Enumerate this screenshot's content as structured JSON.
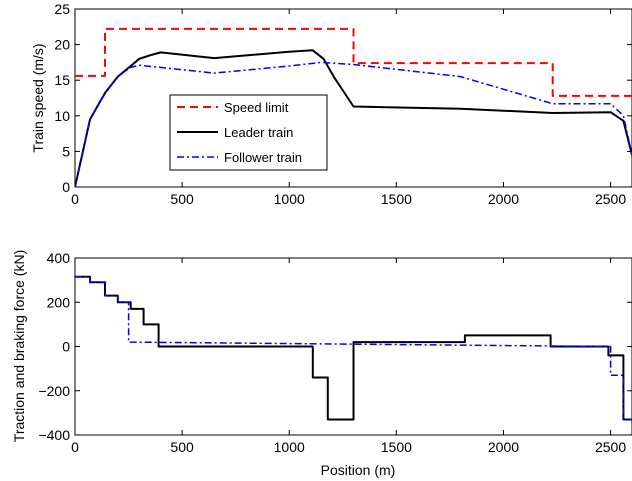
{
  "chart_data": [
    {
      "type": "line",
      "title": "",
      "xlabel": "",
      "ylabel": "Train speed (m/s)",
      "xlim": [
        0,
        2600
      ],
      "ylim": [
        0,
        25
      ],
      "xticks": [
        "0",
        "500",
        "1000",
        "1500",
        "2000",
        "2500"
      ],
      "yticks": [
        "0",
        "5",
        "10",
        "15",
        "20",
        "25"
      ],
      "grid": false,
      "legend_position": "center-left",
      "series": [
        {
          "name": "Speed limit",
          "color": "#ff0000",
          "style": "dashed",
          "x": [
            0,
            140,
            140,
            1300,
            1300,
            2230,
            2230,
            2600
          ],
          "y": [
            15.6,
            15.6,
            22.2,
            22.2,
            17.4,
            17.4,
            12.8,
            12.8
          ]
        },
        {
          "name": "Leader train",
          "color": "#000000",
          "style": "solid",
          "x": [
            0,
            70,
            140,
            200,
            260,
            300,
            350,
            400,
            650,
            1000,
            1110,
            1160,
            1210,
            1300,
            1800,
            2230,
            2500,
            2560,
            2600
          ],
          "y": [
            0,
            9.5,
            13.2,
            15.5,
            17.0,
            18.0,
            18.5,
            18.9,
            18.1,
            19.0,
            19.2,
            18.0,
            15.4,
            11.3,
            11.0,
            10.4,
            10.5,
            9.3,
            4.5
          ]
        },
        {
          "name": "Follower train",
          "color": "#0000ff",
          "style": "dashdot",
          "x": [
            0,
            70,
            140,
            200,
            260,
            300,
            650,
            1000,
            1150,
            1300,
            1800,
            2230,
            2500,
            2560,
            2600
          ],
          "y": [
            0,
            9.5,
            13.2,
            15.5,
            16.8,
            17.1,
            16.0,
            17.0,
            17.5,
            17.2,
            15.5,
            11.7,
            11.7,
            10.0,
            4.5
          ]
        }
      ]
    },
    {
      "type": "line",
      "title": "",
      "xlabel": "Position (m)",
      "ylabel": "Traction and braking force (kN)",
      "xlim": [
        0,
        2600
      ],
      "ylim": [
        -400,
        400
      ],
      "xticks": [
        "0",
        "500",
        "1000",
        "1500",
        "2000",
        "2500"
      ],
      "yticks": [
        "400",
        "200",
        "0",
        "−200",
        "−400"
      ],
      "grid": false,
      "series": [
        {
          "name": "Leader train",
          "color": "#000000",
          "style": "solid",
          "x": [
            0,
            70,
            70,
            140,
            140,
            200,
            200,
            260,
            260,
            320,
            320,
            390,
            390,
            1110,
            1110,
            1180,
            1180,
            1300,
            1300,
            1820,
            1820,
            2220,
            2220,
            2490,
            2490,
            2560,
            2560,
            2600
          ],
          "y": [
            315,
            315,
            290,
            290,
            230,
            230,
            200,
            200,
            170,
            170,
            100,
            100,
            0,
            0,
            -140,
            -140,
            -330,
            -330,
            20,
            20,
            50,
            50,
            0,
            0,
            -40,
            -40,
            -330,
            -330
          ]
        },
        {
          "name": "Follower train",
          "color": "#0000ff",
          "style": "dashdot",
          "x": [
            0,
            70,
            70,
            140,
            140,
            200,
            200,
            250,
            250,
            2500,
            2500,
            2560,
            2560,
            2600
          ],
          "y": [
            315,
            315,
            290,
            290,
            230,
            230,
            200,
            200,
            20,
            0,
            -130,
            -130,
            -330,
            -330
          ]
        }
      ]
    }
  ]
}
